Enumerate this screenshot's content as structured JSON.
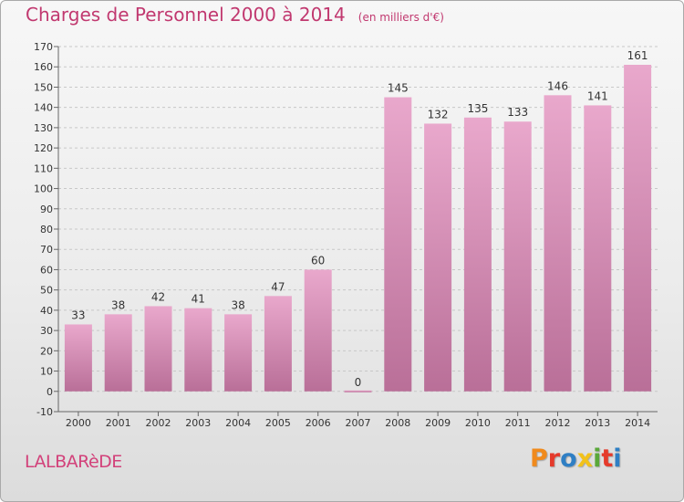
{
  "header": {
    "title": "Charges de Personnel 2000 à 2014",
    "subtitle": "(en milliers d'€)"
  },
  "footer": {
    "commune": "LALBARèDE",
    "brand": "Proxiti",
    "brand_colors": [
      "#f08a1c",
      "#e53a2b",
      "#2f7fc4",
      "#f2c21a",
      "#5aa83a",
      "#e53a2b",
      "#2f7fc4"
    ]
  },
  "colors": {
    "bar_top": "#e9a8cc",
    "bar_bottom": "#b96f98",
    "title": "#c1386f",
    "grid": "#c8c8c8"
  },
  "chart_data": {
    "type": "bar",
    "title": "Charges de Personnel 2000 à 2014",
    "subtitle": "(en milliers d'€)",
    "categories": [
      "2000",
      "2001",
      "2002",
      "2003",
      "2004",
      "2005",
      "2006",
      "2007",
      "2008",
      "2009",
      "2010",
      "2011",
      "2012",
      "2013",
      "2014"
    ],
    "values": [
      33,
      38,
      42,
      41,
      38,
      47,
      60,
      0,
      145,
      132,
      135,
      133,
      146,
      141,
      161
    ],
    "ylim": [
      -10,
      170
    ],
    "yticks": [
      -10,
      0,
      10,
      20,
      30,
      40,
      50,
      60,
      70,
      80,
      90,
      100,
      110,
      120,
      130,
      140,
      150,
      160,
      170
    ],
    "grid": "horizontal dashed",
    "legend": "none"
  }
}
